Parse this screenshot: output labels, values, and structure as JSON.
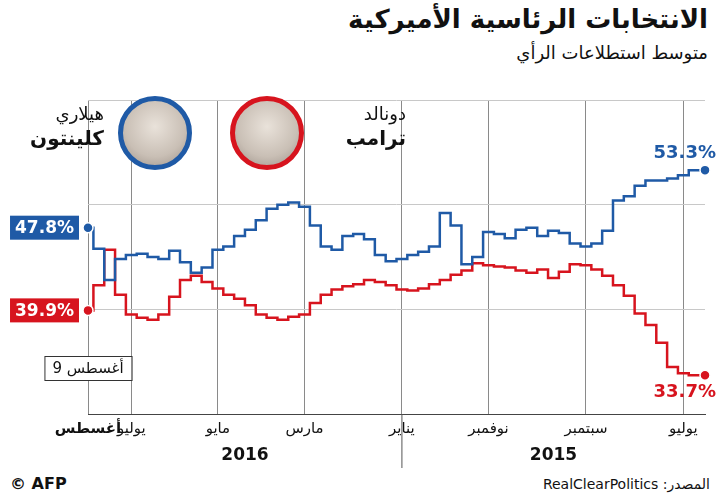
{
  "chart_data": {
    "type": "line",
    "title": "الانتخابات الرئاسية الأميركية",
    "subtitle": "متوسط استطلاعات الرأي",
    "source": "المصدر: RealClearPolitics",
    "credit": "© AFP",
    "annotation": "9 أغسطس",
    "year_labels": [
      "2015",
      "2016"
    ],
    "categories": [
      null,
      null,
      "يوليو",
      null,
      null,
      null,
      null,
      null,
      null,
      null,
      null,
      "سبتمبر",
      null,
      null,
      null,
      null,
      null,
      null,
      null,
      null,
      "نوفمبر",
      null,
      null,
      null,
      null,
      null,
      null,
      null,
      "يناير",
      null,
      null,
      null,
      null,
      null,
      null,
      null,
      null,
      "مارس",
      null,
      null,
      null,
      null,
      null,
      null,
      null,
      "مايو",
      null,
      null,
      null,
      null,
      null,
      null,
      null,
      "يوليو",
      null,
      null,
      null,
      "أغسطس"
    ],
    "series": [
      {
        "name": "هيلاري كلينتون",
        "color": "#1f5aa6",
        "line_style": "stepped",
        "marker": "circle",
        "values": [
          53.3,
          53.3,
          52.8,
          52.5,
          52.3,
          52.3,
          51.8,
          50.8,
          50.4,
          47.5,
          46.3,
          46.0,
          46.3,
          47.3,
          47.5,
          47.0,
          47.8,
          47.6,
          46.8,
          47.2,
          47.4,
          45.0,
          44.3,
          48.0,
          49.2,
          46.0,
          45.5,
          45.2,
          44.8,
          44.6,
          45.2,
          46.7,
          47.2,
          47.0,
          45.7,
          46.0,
          48.0,
          49.8,
          50.2,
          50.0,
          49.6,
          48.5,
          47.6,
          47.0,
          46.0,
          45.7,
          44.0,
          43.5,
          44.5,
          45.6,
          44.8,
          45.0,
          45.3,
          45.2,
          44.8,
          42.8,
          45.8,
          47.8
        ],
        "value_labels": [
          "53.3%",
          null,
          null,
          null,
          null,
          null,
          null,
          null,
          null,
          null,
          null,
          null,
          null,
          null,
          null,
          null,
          null,
          null,
          null,
          null,
          null,
          null,
          null,
          null,
          null,
          null,
          null,
          null,
          null,
          null,
          null,
          null,
          null,
          null,
          null,
          null,
          null,
          null,
          null,
          null,
          null,
          null,
          null,
          null,
          null,
          null,
          null,
          null,
          null,
          null,
          null,
          null,
          null,
          null,
          null,
          null,
          null,
          "47.8%"
        ]
      },
      {
        "name": "دونالد ترامب",
        "color": "#d7141e",
        "line_style": "stepped",
        "marker": "circle",
        "values": [
          33.7,
          33.7,
          33.9,
          34.5,
          36.8,
          38.5,
          39.6,
          41.3,
          42.3,
          43.2,
          43.8,
          44.2,
          44.3,
          43.6,
          43.0,
          43.8,
          43.5,
          43.7,
          44.0,
          44.1,
          44.2,
          44.4,
          43.7,
          43.3,
          42.8,
          42.4,
          42.0,
          41.8,
          41.9,
          42.3,
          42.6,
          42.8,
          42.4,
          42.2,
          41.9,
          41.4,
          40.6,
          39.5,
          39.3,
          39.0,
          39.2,
          39.5,
          40.4,
          41.0,
          41.4,
          42.0,
          42.6,
          43.2,
          42.8,
          41.2,
          39.5,
          39.0,
          39.2,
          39.5,
          41.4,
          45.7,
          42.3,
          39.9
        ],
        "value_labels": [
          "33.7%",
          null,
          null,
          null,
          null,
          null,
          null,
          null,
          null,
          null,
          null,
          null,
          null,
          null,
          null,
          null,
          null,
          null,
          null,
          null,
          null,
          null,
          null,
          null,
          null,
          null,
          null,
          null,
          null,
          null,
          null,
          null,
          null,
          null,
          null,
          null,
          null,
          null,
          null,
          null,
          null,
          null,
          null,
          null,
          null,
          null,
          null,
          null,
          null,
          null,
          null,
          null,
          null,
          null,
          null,
          null,
          null,
          "39.9%"
        ]
      }
    ],
    "ylim": [
      30,
      60
    ],
    "yticks": [
      30,
      40,
      50,
      60
    ],
    "grid": true,
    "tick_labels": "x",
    "data_labels": true
  }
}
